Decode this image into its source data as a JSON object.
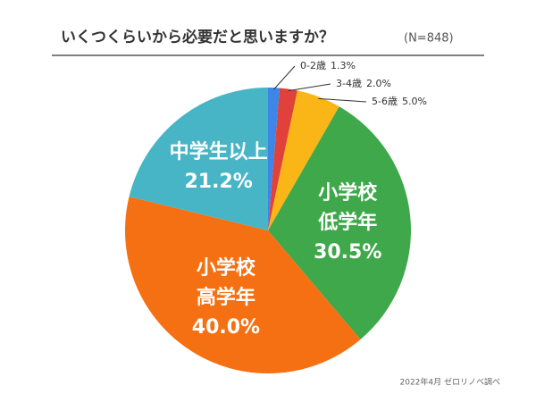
{
  "chart_data": {
    "type": "pie",
    "title": "いくつくらいから必要だと思いますか？",
    "subtitle": "(N=848)",
    "source": "2022年4月 ゼロリノベ調べ",
    "categories": [
      "0-2歳",
      "3-4歳",
      "5-6歳",
      "小学校低学年",
      "小学校高学年",
      "中学生以上"
    ],
    "values": [
      1.3,
      2.0,
      5.0,
      30.5,
      40.0,
      21.2
    ],
    "value_labels": [
      "1.3%",
      "2.0%",
      "5.0%",
      "30.5%",
      "40.0%",
      "21.2%"
    ],
    "colors": [
      "#3d86e8",
      "#e0413a",
      "#f9b616",
      "#3ea84a",
      "#f57012",
      "#47b5c6"
    ]
  }
}
